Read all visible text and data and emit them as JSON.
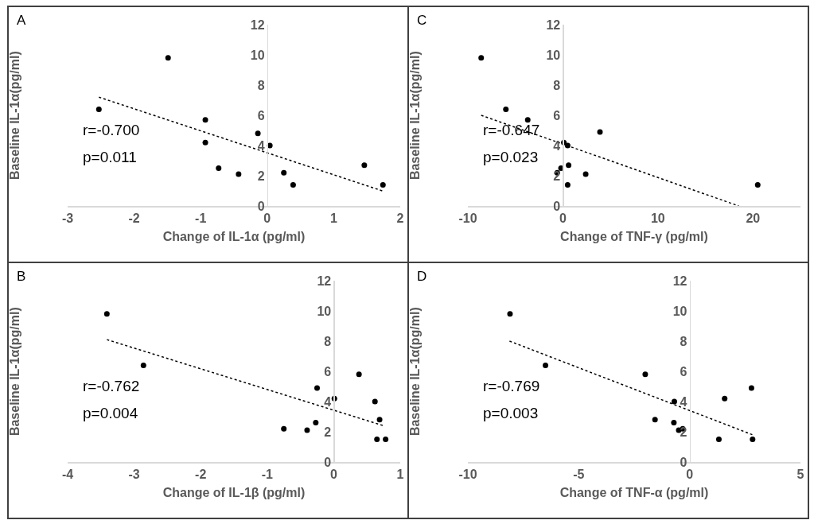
{
  "chart_data": [
    {
      "type": "scatter",
      "title": "A",
      "xlabel": "Change of IL-1α (pg/ml)",
      "ylabel": "Baseline IL-1α(pg/ml)",
      "annotations": [
        "r=-0.700",
        "p=0.011"
      ],
      "xlim": [
        -3,
        2
      ],
      "xticks": [
        -3,
        -2,
        -1,
        0,
        1,
        2
      ],
      "ylim": [
        0,
        12
      ],
      "yticks": [
        0,
        2,
        4,
        6,
        8,
        10,
        12
      ],
      "grid": false,
      "series": [
        {
          "marker": "circle",
          "color": "#000000",
          "x": [
            -2.53,
            -1.49,
            -0.93,
            -0.93,
            -0.73,
            -0.43,
            -0.14,
            0.04,
            0.25,
            0.39,
            1.46,
            1.74
          ],
          "values": [
            6.4,
            9.8,
            5.7,
            4.2,
            2.5,
            2.1,
            4.8,
            4.0,
            2.2,
            1.4,
            2.7,
            1.4
          ]
        },
        {
          "type": "line",
          "marker": "none",
          "color": "#000000",
          "line_style": "dotted",
          "x": [
            -2.53,
            1.73
          ],
          "values": [
            7.2,
            1.0
          ]
        }
      ]
    },
    {
      "type": "scatter",
      "title": "C",
      "xlabel": "Change of TNF-γ (pg/ml)",
      "ylabel": "Baseline IL-1α(pg/ml)",
      "annotations": [
        "r=-0.647",
        "p=0.023"
      ],
      "xlim": [
        -10,
        25
      ],
      "xticks": [
        -10,
        0,
        10,
        20
      ],
      "ylim": [
        0,
        12
      ],
      "yticks": [
        0,
        2,
        4,
        6,
        8,
        10,
        12
      ],
      "grid": false,
      "series": [
        {
          "marker": "circle",
          "color": "#000000",
          "x": [
            -8.6,
            -6.0,
            -3.7,
            3.9,
            0.1,
            0.5,
            0.6,
            -0.2,
            -0.6,
            2.4,
            0.5,
            20.5
          ],
          "values": [
            9.8,
            6.4,
            5.7,
            4.9,
            4.2,
            4.0,
            2.7,
            2.5,
            2.2,
            2.1,
            1.4,
            1.4
          ]
        },
        {
          "type": "line",
          "marker": "none",
          "color": "#000000",
          "line_style": "dotted",
          "x": [
            -8.6,
            18.5
          ],
          "values": [
            6.0,
            0
          ]
        }
      ]
    },
    {
      "type": "scatter",
      "title": "B",
      "xlabel": "Change of IL-1β (pg/ml)",
      "ylabel": "Baseline IL-1α(pg/ml)",
      "annotations": [
        "r=-0.762",
        "p=0.004"
      ],
      "xlim": [
        -4,
        1
      ],
      "xticks": [
        -4,
        -3,
        -2,
        -1,
        0,
        1
      ],
      "ylim": [
        0,
        12
      ],
      "yticks": [
        0,
        2,
        4,
        6,
        8,
        10,
        12
      ],
      "grid": false,
      "series": [
        {
          "marker": "circle",
          "color": "#000000",
          "x": [
            -3.41,
            -2.86,
            -0.75,
            -0.4,
            -0.27,
            -0.25,
            0.01,
            0.38,
            0.62,
            0.69,
            0.65,
            0.78
          ],
          "values": [
            9.8,
            6.4,
            2.2,
            2.1,
            2.6,
            4.9,
            4.2,
            5.8,
            4.0,
            2.8,
            1.5,
            1.5
          ]
        },
        {
          "type": "line",
          "marker": "none",
          "color": "#000000",
          "line_style": "dotted",
          "x": [
            -3.41,
            0.75
          ],
          "values": [
            8.1,
            2.4
          ]
        }
      ]
    },
    {
      "type": "scatter",
      "title": "D",
      "xlabel": "Change of TNF-α (pg/ml)",
      "ylabel": "Baseline IL-1α(pg/ml)",
      "annotations": [
        "r=-0.769",
        "p=0.003"
      ],
      "xlim": [
        -10,
        5
      ],
      "xticks": [
        -10,
        -5,
        0,
        5
      ],
      "ylim": [
        0,
        12
      ],
      "yticks": [
        0,
        2,
        4,
        6,
        8,
        10,
        12
      ],
      "grid": false,
      "series": [
        {
          "marker": "circle",
          "color": "#000000",
          "x": [
            -8.1,
            -6.5,
            -2.0,
            -1.56,
            -0.69,
            -0.71,
            -0.49,
            -0.31,
            1.32,
            1.58,
            2.79,
            2.84
          ],
          "values": [
            9.8,
            6.4,
            5.8,
            2.8,
            4.0,
            2.6,
            2.1,
            2.2,
            1.5,
            4.2,
            4.9,
            1.5
          ]
        },
        {
          "type": "line",
          "marker": "none",
          "color": "#000000",
          "line_style": "dotted",
          "x": [
            -8.12,
            2.84
          ],
          "values": [
            8.0,
            1.8
          ]
        }
      ]
    }
  ]
}
